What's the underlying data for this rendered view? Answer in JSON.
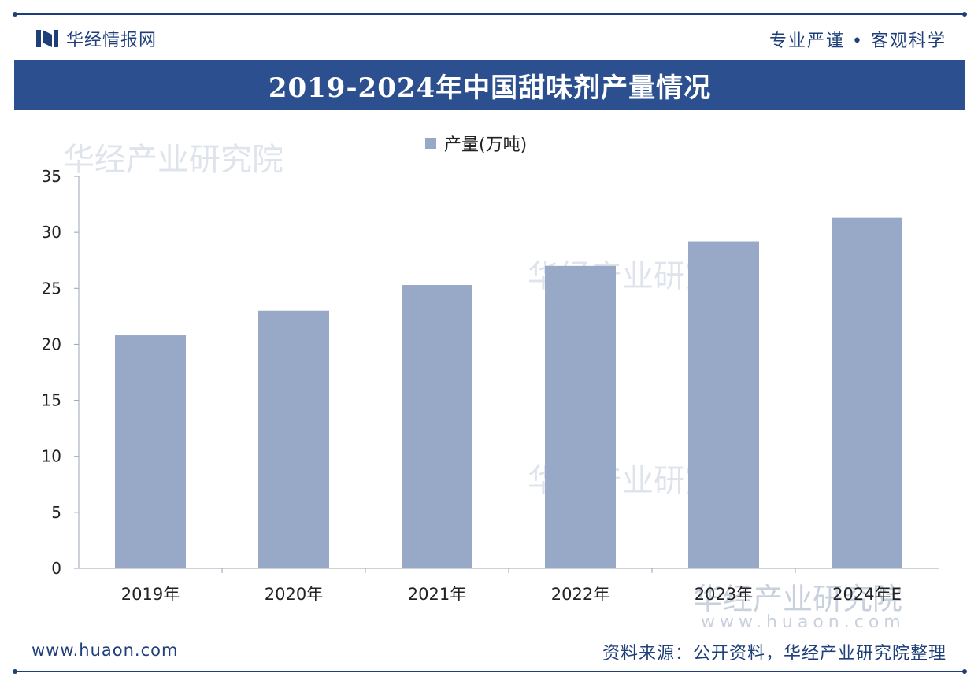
{
  "header": {
    "brand_name": "华经情报网",
    "motto": "专业严谨 • 客观科学",
    "brand_icon": "book-logo-icon"
  },
  "title": "2019-2024年中国甜味剂产量情况",
  "legend": {
    "label": "产量(万吨)"
  },
  "footer": {
    "url": "www.huaon.com",
    "source": "资料来源：公开资料，华经产业研究院整理"
  },
  "watermark": {
    "text": "华经产业研究院",
    "url": "www.huaon.com"
  },
  "colors": {
    "accent": "#2c4f8f",
    "bar": "#98a9c8",
    "text": "#1f3f7a"
  },
  "chart_data": {
    "type": "bar",
    "categories": [
      "2019年",
      "2020年",
      "2021年",
      "2022年",
      "2023年",
      "2024年E"
    ],
    "series": [
      {
        "name": "产量(万吨)",
        "values": [
          20.8,
          23.0,
          25.3,
          27.0,
          29.2,
          31.3
        ]
      }
    ],
    "ylim": [
      0,
      35
    ],
    "yticks": [
      0,
      5,
      10,
      15,
      20,
      25,
      30,
      35
    ],
    "grid": false,
    "legend_position": "top-center"
  }
}
